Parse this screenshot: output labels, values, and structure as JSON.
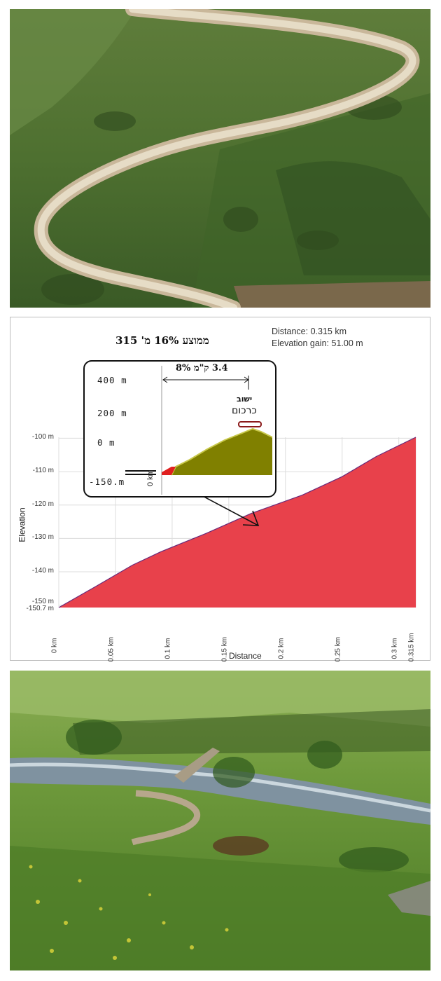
{
  "chart_data": {
    "type": "area",
    "title": "ממוצע 16% מ' 315",
    "xlabel": "Distance",
    "ylabel": "Elevation",
    "x_unit": "km",
    "y_unit": "m",
    "xlim": [
      0,
      0.315
    ],
    "ylim": [
      -150.7,
      -99.7
    ],
    "x_ticks": [
      "0 km",
      "0.05 km",
      "0.1 km",
      "0.15 km",
      "0.2 km",
      "0.25 km",
      "0.3 km",
      "0.315 km"
    ],
    "y_ticks": [
      "-100 m",
      "-110 m",
      "-120 m",
      "-130 m",
      "-140 m",
      "-150 m",
      "-150.7 m"
    ],
    "y_tick_values": [
      -100,
      -110,
      -120,
      -130,
      -140,
      -150,
      -150.7
    ],
    "grid": true,
    "series": [
      {
        "x": [
          0,
          0.032,
          0.065,
          0.09,
          0.13,
          0.17,
          0.215,
          0.25,
          0.28,
          0.315
        ],
        "y": [
          -150.7,
          -144.5,
          -138.0,
          -134.0,
          -128.5,
          -122.5,
          -117.0,
          -111.5,
          -105.5,
          -99.7
        ]
      }
    ],
    "fill_color": "#e8414b",
    "line_color": "#6a2a7a",
    "stats": {
      "distance_label": "Distance:",
      "distance_value": "0.315   km",
      "gain_label": "Elevation gain:",
      "gain_value": "51.00 m"
    },
    "inset": {
      "y_ticks": [
        "400 m",
        "200 m",
        "0 m",
        "-150.m"
      ],
      "x_label": "0 km",
      "span_label": "3.4 ק\"מ  8%",
      "place_line1": "ישוב",
      "place_line2": "כרכום",
      "fill_color": "#808000",
      "start_color": "#e02020"
    }
  }
}
